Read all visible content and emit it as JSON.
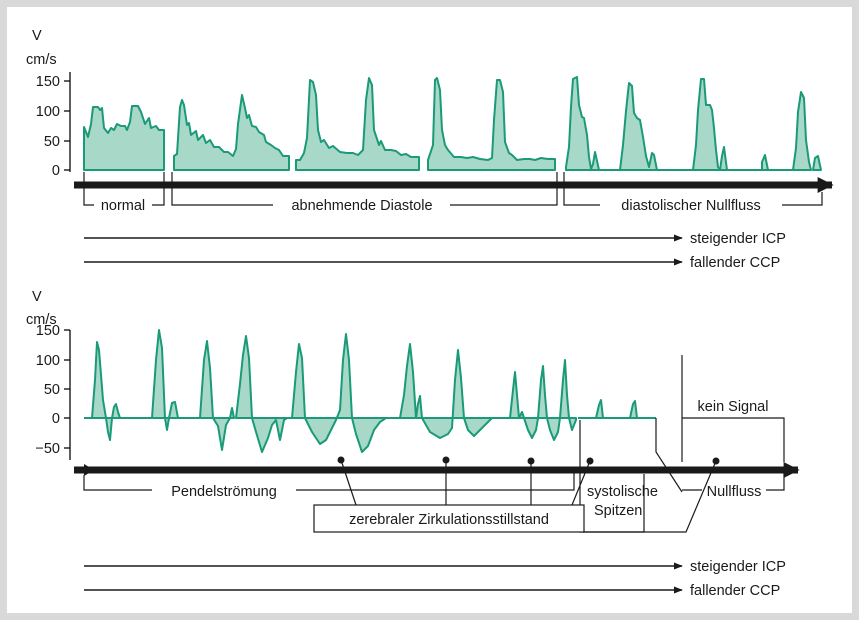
{
  "top": {
    "axis": {
      "var": "V",
      "unit": "cm/s",
      "ticks": [
        "150",
        "100",
        "50",
        "0"
      ]
    },
    "phases": [
      "normal",
      "abnehmende Diastole",
      "diastolischer Nullfluss"
    ],
    "trends": [
      "steigender ICP",
      "fallender CCP"
    ]
  },
  "bottom": {
    "axis": {
      "var": "V",
      "unit": "cm/s",
      "ticks": [
        "150",
        "100",
        "50",
        "0",
        "−50"
      ]
    },
    "phases": [
      "Pendelströmung",
      "kein Signal",
      "Nullfluss"
    ],
    "systolic_label": [
      "systolische",
      "Spitzen"
    ],
    "arrest_label": "zerebraler Zirkulationsstillstand",
    "trends": [
      "steigender ICP",
      "fallender CCP"
    ]
  },
  "colors": {
    "wave_stroke": "#1a9a78",
    "wave_fill": "#a8d8c8",
    "frame": "#d9d9d9"
  }
}
